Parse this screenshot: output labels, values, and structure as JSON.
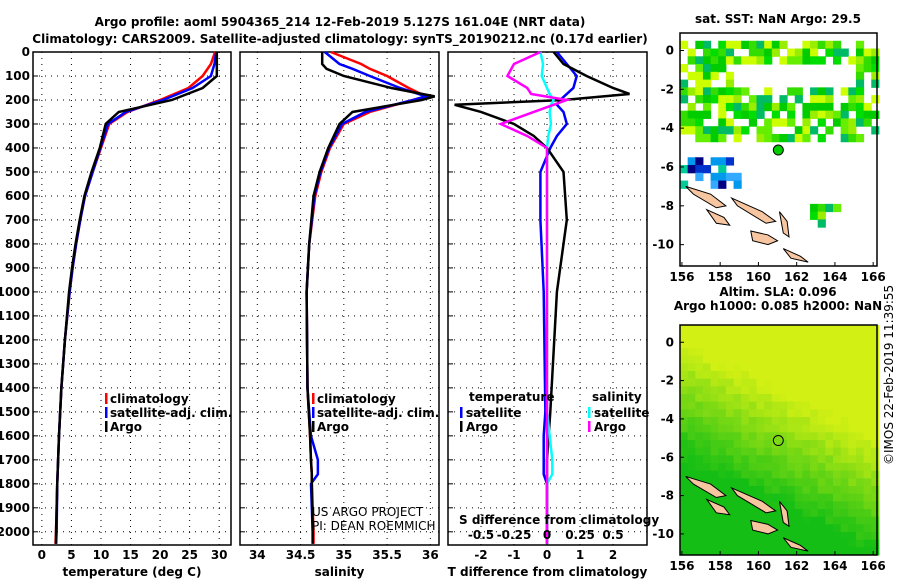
{
  "title": {
    "line1": "Argo profile: aoml 5904365_214 12-Feb-2019 5.127S 161.04E (NRT data)",
    "line2": "Climatology: CARS2009. Satellite-adjusted climatology: synTS_20190212.nc (0.17d earlier)"
  },
  "colors": {
    "climatology": "#ff0000",
    "satellite": "#0000ff",
    "argo": "#000000",
    "sal_sat": "#00ffff",
    "sal_argo": "#ff00ff",
    "land": "#f7c59f"
  },
  "chart_data": [
    {
      "type": "line",
      "id": "temperature",
      "xlabel": "temperature (deg C)",
      "ylabel": "",
      "xlim": [
        -1.5,
        32
      ],
      "ylim": [
        2055,
        0
      ],
      "xticks": [
        0,
        5,
        10,
        15,
        20,
        25,
        30
      ],
      "yticks": [
        0,
        100,
        200,
        300,
        400,
        500,
        600,
        700,
        800,
        900,
        1000,
        1100,
        1200,
        1300,
        1400,
        1500,
        1600,
        1700,
        1800,
        1900,
        2000
      ],
      "depth": [
        0,
        50,
        100,
        150,
        200,
        250,
        300,
        400,
        500,
        600,
        700,
        800,
        900,
        1000,
        1200,
        1400,
        1600,
        1800,
        2000,
        2050
      ],
      "legend": [
        "climatology",
        "satellite-adj. clim.",
        "Argo"
      ],
      "series": [
        {
          "name": "climatology",
          "color": "#ff0000",
          "values": [
            29.3,
            28.6,
            27.2,
            24.8,
            20.0,
            14.5,
            11.4,
            10.0,
            8.6,
            7.3,
            6.5,
            5.8,
            5.2,
            4.7,
            3.9,
            3.3,
            2.9,
            2.6,
            2.4,
            2.3
          ]
        },
        {
          "name": "satellite-adj. clim.",
          "color": "#0000ff",
          "values": [
            29.5,
            29.2,
            28.6,
            25.5,
            20.5,
            14.2,
            11.2,
            9.9,
            8.6,
            7.3,
            6.5,
            5.8,
            5.2,
            4.7,
            3.9,
            3.3,
            2.9,
            2.6,
            2.5,
            2.4
          ]
        },
        {
          "name": "Argo",
          "color": "#000000",
          "values": [
            29.6,
            29.6,
            29.6,
            27.2,
            22.0,
            13.0,
            10.8,
            9.8,
            8.4,
            7.2,
            6.4,
            5.7,
            5.1,
            4.6,
            3.9,
            3.3,
            2.9,
            2.6,
            2.4,
            2.4
          ]
        }
      ]
    },
    {
      "type": "line",
      "id": "salinity",
      "xlabel": "salinity",
      "xlim": [
        33.8,
        36.1
      ],
      "ylim": [
        2055,
        0
      ],
      "xticks": [
        34,
        34.5,
        35,
        35.5,
        36
      ],
      "depth": [
        0,
        50,
        70,
        100,
        150,
        185,
        200,
        250,
        300,
        400,
        500,
        600,
        800,
        1000,
        1400,
        1600,
        1700,
        1760,
        1800,
        2000,
        2050
      ],
      "legend": [
        "climatology",
        "satellite-adj. clim.",
        "Argo"
      ],
      "annotation": [
        "US ARGO PROJECT",
        "PI: DEAN ROEMMICH"
      ],
      "series": [
        {
          "name": "climatology",
          "color": "#ff0000",
          "values": [
            34.85,
            35.2,
            35.3,
            35.5,
            35.75,
            35.95,
            35.8,
            35.3,
            35.0,
            34.84,
            34.74,
            34.67,
            34.6,
            34.57,
            34.58,
            34.61,
            34.62,
            34.63,
            34.63,
            34.65,
            34.65
          ]
        },
        {
          "name": "satellite-adj. clim.",
          "color": "#0000ff",
          "values": [
            34.78,
            34.95,
            35.1,
            35.3,
            35.65,
            35.95,
            35.8,
            35.25,
            34.98,
            34.83,
            34.73,
            34.66,
            34.6,
            34.57,
            34.58,
            34.62,
            34.7,
            34.7,
            34.62,
            34.64,
            34.64
          ]
        },
        {
          "name": "Argo",
          "color": "#000000",
          "values": [
            34.75,
            34.75,
            34.8,
            35.0,
            35.55,
            36.05,
            35.9,
            35.1,
            34.95,
            34.82,
            34.72,
            34.65,
            34.6,
            34.57,
            34.58,
            34.61,
            34.62,
            34.63,
            34.63,
            34.64,
            34.64
          ]
        }
      ]
    },
    {
      "type": "line",
      "id": "difference",
      "xlabel": "T difference from climatology",
      "x2label": "S difference from climatology",
      "xlim": [
        -3,
        3.03
      ],
      "x2lim": [
        -0.75,
        0.7575
      ],
      "ylim": [
        2055,
        0
      ],
      "xticks": [
        -2,
        -1,
        0,
        1,
        2
      ],
      "x2ticks": [
        "-0.5",
        "-0.25",
        "0",
        "0.25",
        "0.5"
      ],
      "depth": [
        0,
        50,
        100,
        150,
        175,
        200,
        220,
        250,
        300,
        350,
        400,
        500,
        700,
        1000,
        1500,
        1600,
        1700,
        1760,
        1800,
        2000,
        2050
      ],
      "legend_temperature": {
        "title": "temperature",
        "items": [
          "satellite",
          "Argo"
        ]
      },
      "legend_salinity": {
        "title": "salinity",
        "items": [
          "satellite",
          "Argo"
        ]
      },
      "series": [
        {
          "name": "temperature satellite",
          "color": "#0000ff",
          "axis": "T",
          "values": [
            0.3,
            0.6,
            0.9,
            0.8,
            0.6,
            0.4,
            0.3,
            0.5,
            0.6,
            0.3,
            0.1,
            -0.2,
            -0.2,
            -0.1,
            -0.05,
            -0.1,
            -0.1,
            -0.1,
            0.0,
            0.0,
            0.0
          ]
        },
        {
          "name": "temperature Argo",
          "color": "#000000",
          "axis": "T",
          "values": [
            0.2,
            0.5,
            1.2,
            2.0,
            2.5,
            0.5,
            -2.8,
            -2.0,
            -1.0,
            -0.4,
            0.0,
            0.5,
            0.6,
            0.3,
            0.1,
            0.05,
            0.0,
            0.0,
            0.0,
            0.0,
            0.0
          ]
        },
        {
          "name": "salinity satellite",
          "color": "#00ffff",
          "axis": "S",
          "values": [
            -0.05,
            -0.03,
            -0.04,
            0.0,
            0.02,
            0.05,
            0.03,
            0.02,
            0.03,
            0.01,
            0.0,
            0.0,
            0.0,
            0.0,
            0.0,
            0.02,
            0.04,
            0.04,
            0.0,
            0.0,
            0.0
          ]
        },
        {
          "name": "salinity Argo",
          "color": "#ff00ff",
          "axis": "S",
          "values": [
            -0.05,
            -0.25,
            -0.3,
            -0.15,
            -0.12,
            0.15,
            0.05,
            -0.1,
            -0.35,
            -0.15,
            0.0,
            0.0,
            0.0,
            0.0,
            0.0,
            0.0,
            0.0,
            0.0,
            0.0,
            0.0,
            0.0
          ]
        }
      ]
    },
    {
      "type": "heatmap",
      "id": "sst_map",
      "title": "sat. SST: NaN Argo: 29.5",
      "xlim": [
        155.9,
        166.2
      ],
      "ylim": [
        -11.1,
        0.9
      ],
      "xticks": [
        156,
        158,
        160,
        162,
        164,
        166
      ],
      "yticks": [
        0,
        -2,
        -4,
        -6,
        -8,
        -10
      ],
      "argo_position": {
        "lon": 161.04,
        "lat": -5.127
      }
    },
    {
      "type": "heatmap",
      "id": "sla_map",
      "title": "Altim. SLA: 0.096",
      "subtitle": "Argo h1000: 0.085 h2000: NaN",
      "xlim": [
        155.9,
        166.2
      ],
      "ylim": [
        -11.1,
        0.9
      ],
      "xticks": [
        156,
        158,
        160,
        162,
        164,
        166
      ],
      "yticks": [
        0,
        -2,
        -4,
        -6,
        -8,
        -10
      ],
      "argo_position": {
        "lon": 161.04,
        "lat": -5.127
      }
    }
  ],
  "credit": "©IMOS 22-Feb-2019 11:39:55"
}
